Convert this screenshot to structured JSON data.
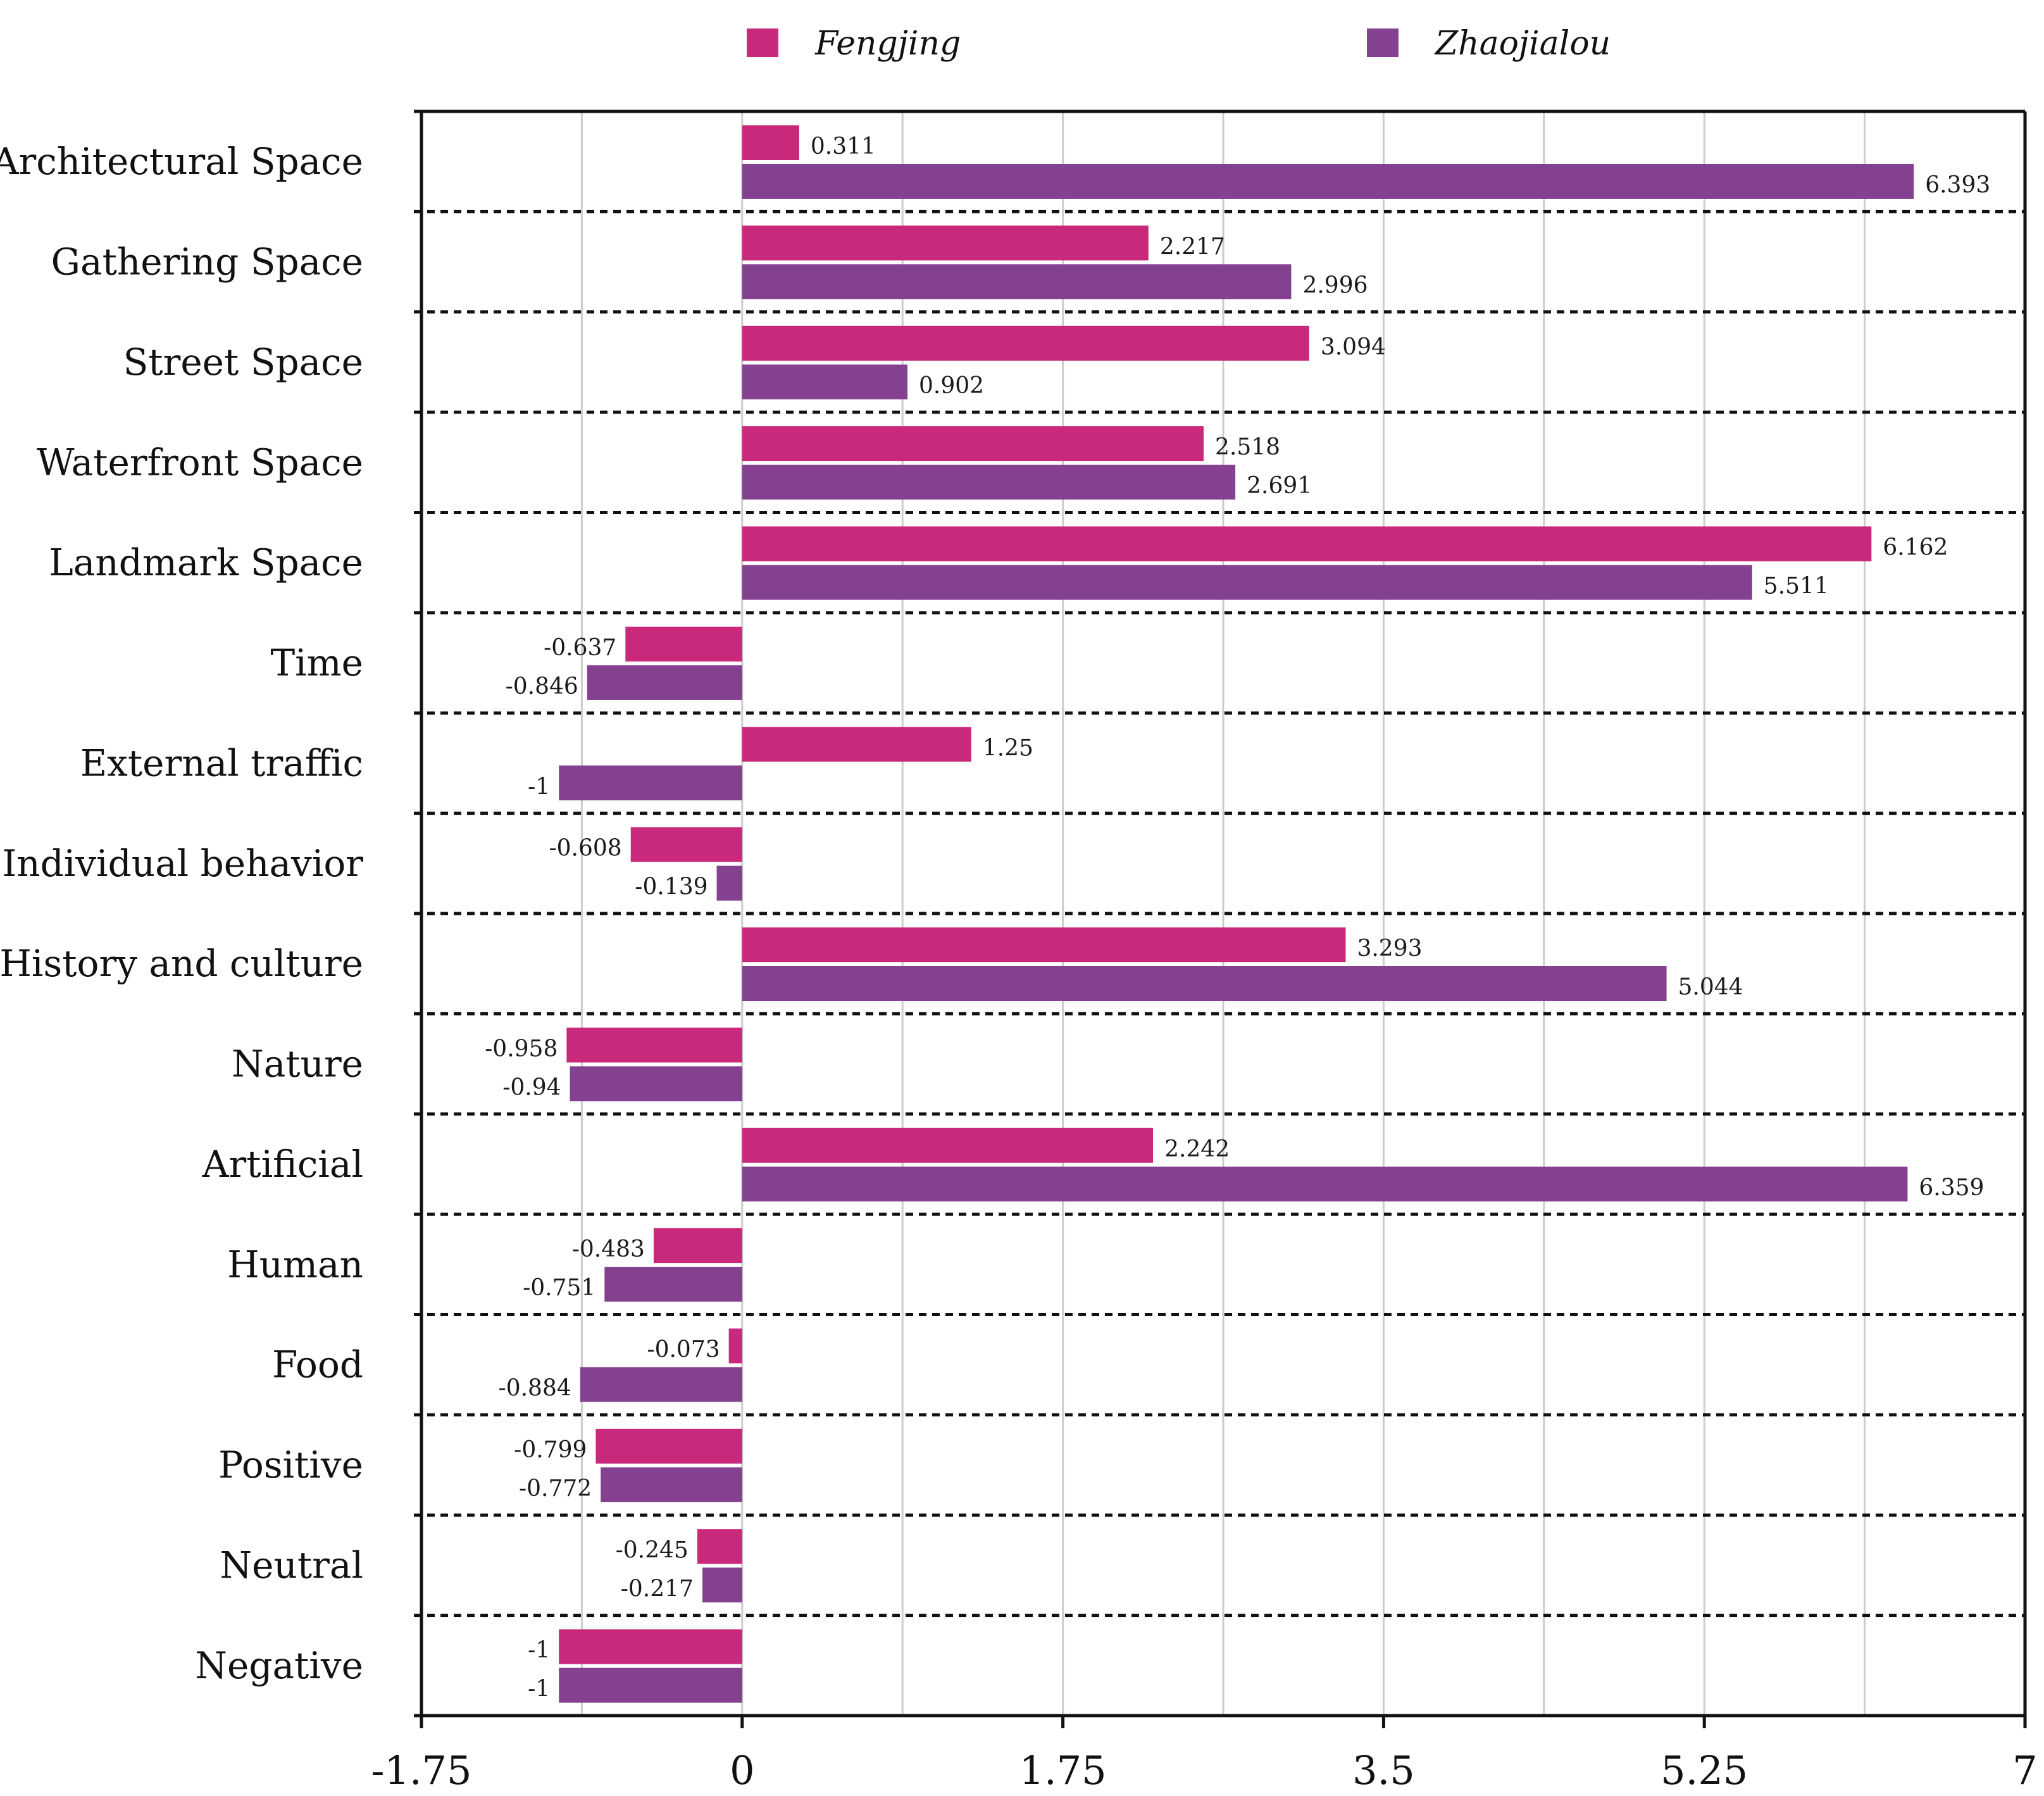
{
  "chart_data": {
    "type": "bar",
    "orientation": "horizontal",
    "title": "",
    "xlabel": "",
    "ylabel": "",
    "xlim": [
      -1.75,
      7
    ],
    "x_ticks": [
      -1.75,
      0,
      1.75,
      3.5,
      5.25,
      7
    ],
    "x_tick_labels": [
      "-1.75",
      "0",
      "1.75",
      "3.5",
      "5.25",
      "7"
    ],
    "grid": true,
    "legend_position": "top",
    "categories": [
      "Architectural Space",
      "Gathering Space",
      "Street Space",
      "Waterfront Space",
      "Landmark Space",
      "Time",
      "External traffic",
      "Individual behavior",
      "History and culture",
      "Nature",
      "Artificial",
      "Human",
      "Food",
      "Positive",
      "Neutral",
      "Negative"
    ],
    "series": [
      {
        "name": "Fengjing",
        "color": "#C8297A",
        "values": [
          0.311,
          2.217,
          3.094,
          2.518,
          6.162,
          -0.637,
          1.25,
          -0.608,
          3.293,
          -0.958,
          2.242,
          -0.483,
          -0.073,
          -0.799,
          -0.245,
          -1
        ],
        "labels": [
          "0.311",
          "2.217",
          "3.094",
          "2.518",
          "6.162",
          "-0.637",
          "1.25",
          "-0.608",
          "3.293",
          "-0.958",
          "2.242",
          "-0.483",
          "-0.073",
          "-0.799",
          "-0.245",
          "-1"
        ]
      },
      {
        "name": "Zhaojialou",
        "color": "#83418F",
        "values": [
          6.393,
          2.996,
          0.902,
          2.691,
          5.511,
          -0.846,
          -1,
          -0.139,
          5.044,
          -0.94,
          6.359,
          -0.751,
          -0.884,
          -0.772,
          -0.217,
          -1
        ],
        "labels": [
          "6.393",
          "2.996",
          "0.902",
          "2.691",
          "5.511",
          "-0.846",
          "-1",
          "-0.139",
          "5.044",
          "-0.94",
          "6.359",
          "-0.751",
          "-0.884",
          "-0.772",
          "-0.217",
          "-1"
        ]
      }
    ]
  }
}
